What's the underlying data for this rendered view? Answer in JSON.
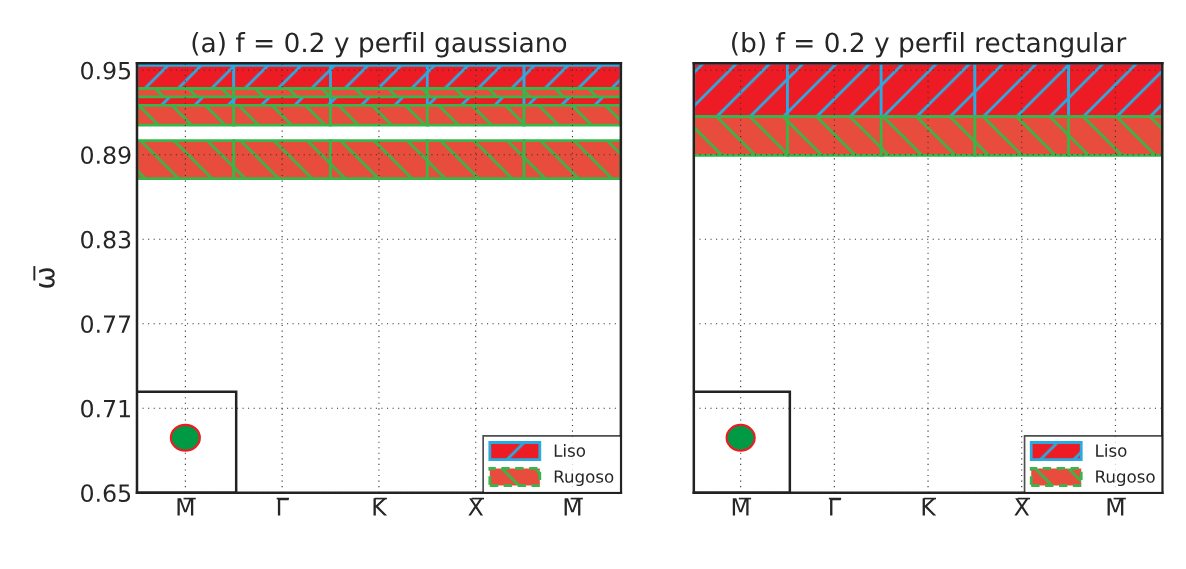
{
  "chart_data": [
    {
      "type": "bar",
      "title": "(a) f = 0.2 y perfil gaussiano",
      "ylabel": "ω̅",
      "categories": [
        "M̅",
        "Γ̅",
        "K̅",
        "X̅",
        "M̅"
      ],
      "ylim": [
        0.65,
        0.955
      ],
      "yticks": [
        0.65,
        0.71,
        0.77,
        0.83,
        0.89,
        0.95
      ],
      "grid": true,
      "legend": "bottom right",
      "series": [
        {
          "name": "Liso",
          "color": "#29abe2",
          "line_style": "solid",
          "base": [
            0.925,
            0.925,
            0.925,
            0.925,
            0.925
          ],
          "values": [
            0.0285,
            0.0285,
            0.0285,
            0.0285,
            0.0285
          ]
        },
        {
          "name": "Rugoso",
          "color": "#39b54a",
          "line_style": "dashed",
          "base": [
            0.931,
            0.931,
            0.931,
            0.931,
            0.931
          ],
          "values": [
            0.006,
            0.006,
            0.006,
            0.006,
            0.006
          ]
        },
        {
          "color": "#39b54a",
          "line_style": "dashed",
          "base": [
            0.911,
            0.911,
            0.911,
            0.911,
            0.911
          ],
          "values": [
            0.014,
            0.014,
            0.014,
            0.014,
            0.014
          ]
        },
        {
          "color": "#39b54a",
          "line_style": "dashed",
          "base": [
            0.873,
            0.873,
            0.873,
            0.873,
            0.873
          ],
          "values": [
            0.027,
            0.027,
            0.027,
            0.027,
            0.027
          ]
        }
      ]
    },
    {
      "type": "bar",
      "title": "(b) f = 0.2 y perfil rectangular",
      "categories": [
        "M̅",
        "Γ̅",
        "K̅",
        "X̅",
        "M̅"
      ],
      "ylim": [
        0.65,
        0.955
      ],
      "yticks": [
        0.65,
        0.71,
        0.77,
        0.83,
        0.89,
        0.95
      ],
      "tick_labels": "x",
      "grid": true,
      "legend": "bottom right",
      "series": [
        {
          "name": "Liso",
          "color": "#29abe2",
          "line_style": "solid",
          "base": [
            0.917,
            0.917,
            0.917,
            0.917,
            0.917
          ],
          "values": [
            0.038,
            0.038,
            0.038,
            0.038,
            0.038
          ]
        },
        {
          "name": "Rugoso",
          "color": "#39b54a",
          "line_style": "dashed",
          "base": [
            0.8896,
            0.8896,
            0.8896,
            0.8896,
            0.8896
          ],
          "values": [
            0.0274,
            0.0274,
            0.0274,
            0.0274,
            0.0274
          ]
        }
      ]
    }
  ]
}
